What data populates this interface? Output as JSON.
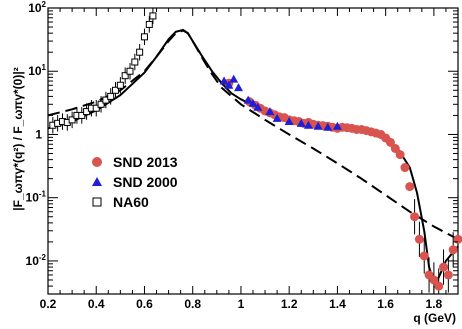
{
  "chart_data": {
    "type": "scatter",
    "title": "",
    "xlabel": "q (GeV)",
    "ylabel": "|F_ωπγ*(q²) / F_ωπγ*(0)|²",
    "xlim": [
      0.2,
      1.9
    ],
    "ylim": [
      0.003,
      100
    ],
    "y_scale": "log",
    "x_ticks": [
      "0.2",
      "0.4",
      "0.6",
      "0.8",
      "1",
      "1.2",
      "1.4",
      "1.6",
      "1.8"
    ],
    "y_tick_mantissa": "10",
    "y_tick_exponents": [
      "-2",
      "-1",
      "",
      "1",
      "2"
    ],
    "y_tick_plain": [
      "1"
    ],
    "legend_position": "center-left",
    "colors": {
      "snd2013": "#d9534f",
      "snd2000": "#1f1fd6",
      "na60": "#000000"
    },
    "series": [
      {
        "name": "SND 2013",
        "marker": "circle",
        "x": [
          0.95,
          1.035,
          1.06,
          1.08,
          1.1,
          1.12,
          1.14,
          1.16,
          1.18,
          1.2,
          1.22,
          1.24,
          1.26,
          1.28,
          1.3,
          1.32,
          1.34,
          1.36,
          1.38,
          1.4,
          1.42,
          1.44,
          1.46,
          1.48,
          1.5,
          1.52,
          1.54,
          1.56,
          1.58,
          1.6,
          1.62,
          1.64,
          1.66,
          1.68,
          1.7,
          1.72,
          1.74,
          1.76,
          1.78,
          1.8,
          1.82,
          1.84,
          1.86,
          1.88,
          1.9
        ],
        "y": [
          6.5,
          3.3,
          2.9,
          2.6,
          2.35,
          2.2,
          2.05,
          1.9,
          1.85,
          1.7,
          1.65,
          1.6,
          1.5,
          1.55,
          1.45,
          1.4,
          1.38,
          1.35,
          1.3,
          1.25,
          1.3,
          1.28,
          1.25,
          1.2,
          1.2,
          1.15,
          1.1,
          1.05,
          1.0,
          0.88,
          0.75,
          0.6,
          0.48,
          0.3,
          0.15,
          0.05,
          0.022,
          0.012,
          0.006,
          0.005,
          0.004,
          0.008,
          0.006,
          0.015,
          0.022
        ]
      },
      {
        "name": "SND 2000",
        "marker": "triangle",
        "x": [
          0.93,
          0.95,
          0.97,
          0.99,
          1.03,
          1.05,
          1.07,
          1.12,
          1.15,
          1.2,
          1.25,
          1.28,
          1.32,
          1.36,
          1.4
        ],
        "y": [
          7.0,
          6.0,
          7.5,
          5.5,
          3.5,
          3.1,
          2.7,
          2.3,
          1.8,
          1.6,
          1.5,
          1.4,
          1.35,
          1.3,
          1.35
        ]
      },
      {
        "name": "NA60",
        "marker": "open-square",
        "x": [
          0.22,
          0.24,
          0.26,
          0.28,
          0.3,
          0.32,
          0.34,
          0.36,
          0.38,
          0.4,
          0.42,
          0.44,
          0.46,
          0.48,
          0.5,
          0.52,
          0.54,
          0.56,
          0.58,
          0.6,
          0.62,
          0.635
        ],
        "y": [
          1.4,
          1.5,
          1.6,
          1.55,
          1.7,
          2.0,
          2.0,
          2.3,
          2.6,
          2.6,
          3.0,
          3.5,
          4.0,
          5.0,
          6.0,
          8.5,
          10,
          14,
          20,
          35,
          55,
          75
        ]
      }
    ],
    "curves": [
      {
        "style": "solid",
        "x": [
          0.2,
          0.3,
          0.4,
          0.5,
          0.6,
          0.65,
          0.7,
          0.73,
          0.76,
          0.78,
          0.8,
          0.84,
          0.88,
          0.92,
          0.96,
          1.0,
          1.1,
          1.2,
          1.3,
          1.4,
          1.5,
          1.6,
          1.65,
          1.7,
          1.73,
          1.76,
          1.78,
          1.8,
          1.82,
          1.85,
          1.9
        ],
        "y": [
          1.25,
          1.6,
          2.4,
          4.2,
          9.5,
          17,
          32,
          42,
          45,
          40,
          30,
          17,
          10,
          6.5,
          4.5,
          3.6,
          2.3,
          1.75,
          1.45,
          1.3,
          1.15,
          0.9,
          0.6,
          0.3,
          0.12,
          0.03,
          0.008,
          0.0045,
          0.0055,
          0.01,
          0.017
        ]
      },
      {
        "style": "dashed",
        "x": [
          0.2,
          0.3,
          0.4,
          0.5,
          0.6,
          0.65,
          0.7,
          0.73,
          0.76,
          0.78,
          0.8,
          0.84,
          0.88,
          0.92,
          1.0,
          1.1,
          1.2,
          1.3,
          1.4,
          1.5,
          1.6,
          1.7,
          1.8,
          1.9
        ],
        "y": [
          2.0,
          2.5,
          3.3,
          5.0,
          10,
          17,
          30,
          40,
          44,
          40,
          30,
          16,
          9.0,
          5.5,
          3.0,
          1.7,
          1.0,
          0.6,
          0.35,
          0.2,
          0.11,
          0.06,
          0.035,
          0.022
        ]
      }
    ]
  }
}
